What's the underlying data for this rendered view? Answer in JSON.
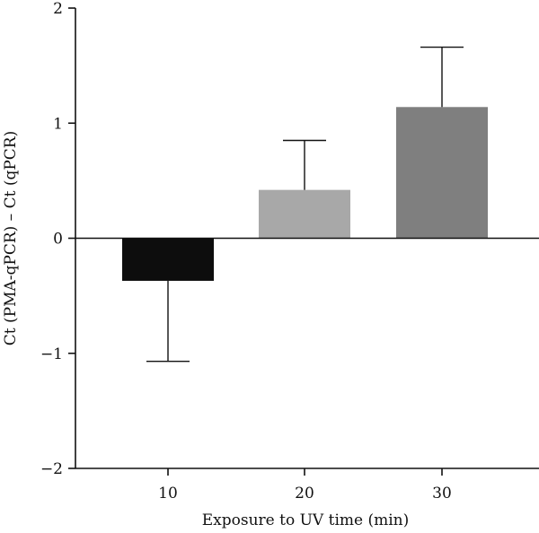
{
  "chart_data": {
    "type": "bar",
    "categories": [
      "10",
      "20",
      "30"
    ],
    "values": [
      -0.37,
      0.42,
      1.14
    ],
    "errors_upper": [
      0,
      0.43,
      0.52
    ],
    "errors_lower": [
      0.7,
      0,
      0
    ],
    "bar_colors": [
      "#0d0d0d",
      "#a8a8a8",
      "#7f7f7f"
    ],
    "xlabel": "Exposure to UV time (min)",
    "ylabel": "Ct (PMA-qPCR) – Ct (qPCR)",
    "ylim": [
      -2,
      2
    ],
    "yticks": [
      2,
      1,
      0,
      -1,
      -2
    ],
    "ytick_labels": [
      "2",
      "1",
      "0",
      "−1",
      "−2"
    ],
    "grid": false,
    "legend": "none"
  }
}
